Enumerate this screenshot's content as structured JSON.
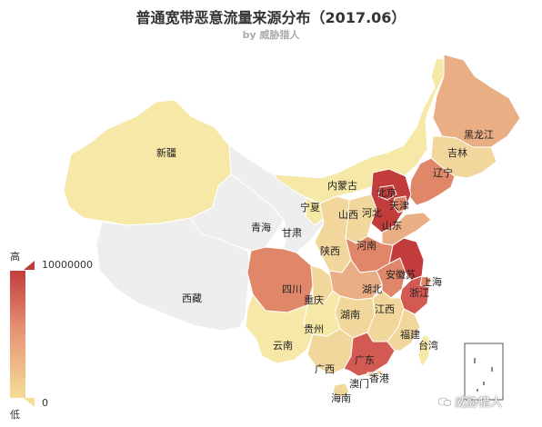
{
  "title": "普通宽带恶意流量来源分布（2017.06）",
  "subtitle": "by 威胁猎人",
  "legend": {
    "high_label": "高",
    "low_label": "低",
    "max_value": "10000000",
    "min_value": "0"
  },
  "watermark": "威胁猎人",
  "colors": {
    "very_high": "#c23c3c",
    "high": "#d35a52",
    "medium_high": "#e0876a",
    "medium": "#eaae85",
    "low": "#f2d79d",
    "very_low": "#f6e8a6",
    "no_data": "#eeeeee"
  },
  "provinces": [
    {
      "id": "xinjiang",
      "name": "新疆",
      "level": "very_low"
    },
    {
      "id": "xizang",
      "name": "西藏",
      "level": "no_data"
    },
    {
      "id": "qinghai",
      "name": "青海",
      "level": "no_data"
    },
    {
      "id": "gansu",
      "name": "甘肃",
      "level": "no_data"
    },
    {
      "id": "neimenggu",
      "name": "内蒙古",
      "level": "very_low"
    },
    {
      "id": "heilongjiang",
      "name": "黑龙江",
      "level": "medium"
    },
    {
      "id": "jilin",
      "name": "吉林",
      "level": "low"
    },
    {
      "id": "liaoning",
      "name": "辽宁",
      "level": "medium_high"
    },
    {
      "id": "beijing",
      "name": "北京",
      "level": "very_high"
    },
    {
      "id": "tianjin",
      "name": "天津",
      "level": "medium_high"
    },
    {
      "id": "hebei",
      "name": "河北",
      "level": "very_high"
    },
    {
      "id": "shanxi",
      "name": "山西",
      "level": "low"
    },
    {
      "id": "shandong",
      "name": "山东",
      "level": "medium"
    },
    {
      "id": "ningxia",
      "name": "宁夏",
      "level": "very_low"
    },
    {
      "id": "shaanxi",
      "name": "陕西",
      "level": "low"
    },
    {
      "id": "henan",
      "name": "河南",
      "level": "medium_high"
    },
    {
      "id": "sichuan",
      "name": "四川",
      "level": "medium_high"
    },
    {
      "id": "chongqing",
      "name": "重庆",
      "level": "low"
    },
    {
      "id": "hubei",
      "name": "湖北",
      "level": "medium"
    },
    {
      "id": "anhui",
      "name": "安徽",
      "level": "medium_high"
    },
    {
      "id": "jiangsu",
      "name": "苏",
      "level": "very_high"
    },
    {
      "id": "shanghai",
      "name": "上海",
      "level": "medium_high"
    },
    {
      "id": "zhejiang",
      "name": "浙江",
      "level": "high"
    },
    {
      "id": "hunan",
      "name": "湖南",
      "level": "low"
    },
    {
      "id": "jiangxi",
      "name": "江西",
      "level": "low"
    },
    {
      "id": "guizhou",
      "name": "贵州",
      "level": "very_low"
    },
    {
      "id": "yunnan",
      "name": "云南",
      "level": "very_low"
    },
    {
      "id": "guangxi",
      "name": "广西",
      "level": "low"
    },
    {
      "id": "guangdong",
      "name": "广东",
      "level": "high"
    },
    {
      "id": "fujian",
      "name": "福建",
      "level": "low"
    },
    {
      "id": "taiwan",
      "name": "台湾",
      "level": "very_low"
    },
    {
      "id": "hainan",
      "name": "海南",
      "level": "low"
    },
    {
      "id": "xianggang",
      "name": "香港",
      "level": "low"
    },
    {
      "id": "aomen",
      "name": "澳门",
      "level": "low"
    }
  ]
}
